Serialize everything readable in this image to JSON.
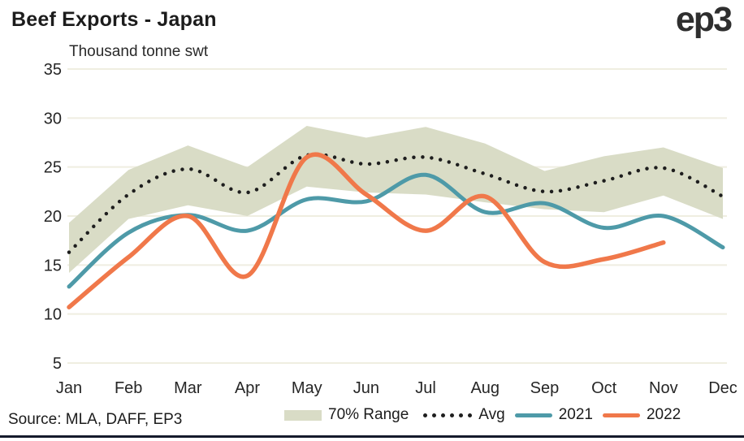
{
  "header": {
    "title": "Beef Exports - Japan",
    "subtitle": "Thousand tonne swt",
    "logo_text": "ep3"
  },
  "source_note": "Source: MLA, DAFF, EP3",
  "legend": {
    "range_label": "70% Range",
    "avg_label": "Avg",
    "y2021_label": "2021",
    "y2022_label": "2022"
  },
  "colors": {
    "band": "#d9dcc6",
    "avg": "#1e1e1e",
    "y2021": "#4e9aa8",
    "y2022": "#f0784a",
    "grid": "#efeee1",
    "text": "#1c1c1c",
    "tick": "#262626",
    "bottom_bar": "#151a2b"
  },
  "chart_data": {
    "type": "line",
    "title": "Beef Exports - Japan",
    "ylabel": "Thousand tonne swt",
    "categories": [
      "Jan",
      "Feb",
      "Mar",
      "Apr",
      "May",
      "Jun",
      "Jul",
      "Aug",
      "Sep",
      "Oct",
      "Nov",
      "Dec"
    ],
    "ylim": [
      5,
      35
    ],
    "yticks": [
      35,
      30,
      25,
      20,
      15,
      10,
      5
    ],
    "grid": "horizontal",
    "legend_position": "bottom",
    "series": [
      {
        "name": "70% Range",
        "type": "band",
        "upper": [
          19.3,
          24.7,
          27.2,
          25.0,
          29.2,
          28.0,
          29.1,
          27.4,
          24.6,
          26.1,
          27.0,
          24.9
        ],
        "lower": [
          14.2,
          19.7,
          21.1,
          20.0,
          23.0,
          22.4,
          22.2,
          21.4,
          20.7,
          20.4,
          22.1,
          19.7
        ],
        "color": "#d9dcc6"
      },
      {
        "name": "Avg",
        "type": "dotted-line",
        "values": [
          16.3,
          22.2,
          24.8,
          22.4,
          26.2,
          25.3,
          26.0,
          24.3,
          22.5,
          23.6,
          24.9,
          22.0
        ],
        "color": "#1e1e1e"
      },
      {
        "name": "2021",
        "type": "line",
        "values": [
          12.8,
          18.3,
          20.1,
          18.5,
          21.7,
          21.5,
          24.2,
          20.4,
          21.3,
          18.8,
          20.0,
          16.8
        ],
        "color": "#4e9aa8"
      },
      {
        "name": "2022",
        "type": "line",
        "values": [
          10.7,
          15.8,
          20.0,
          13.9,
          26.0,
          22.2,
          18.5,
          22.0,
          15.3,
          15.6,
          17.3
        ],
        "color": "#f0784a"
      }
    ]
  }
}
